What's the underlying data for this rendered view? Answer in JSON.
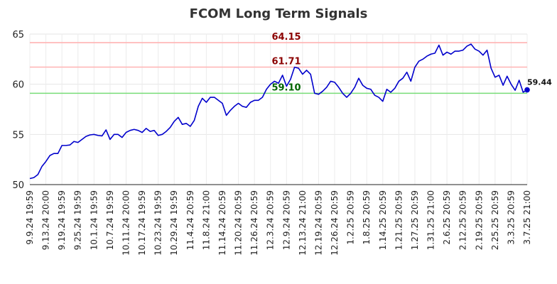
{
  "chart_data": {
    "type": "line",
    "title": "FCOM Long Term Signals",
    "xlabel": "",
    "ylabel": "",
    "ylim": [
      50,
      65
    ],
    "yticks": [
      50,
      55,
      60,
      65
    ],
    "grid": true,
    "x_tick_labels": [
      "9.9.24 19:59",
      "9.13.24 20:00",
      "9.19.24 19:59",
      "9.25.24 19:59",
      "10.1.24 19:59",
      "10.7.24 19:59",
      "10.11.24 20:00",
      "10.17.24 19:59",
      "10.23.24 19:59",
      "10.29.24 19:59",
      "11.4.24 20:59",
      "11.8.24 21:00",
      "11.14.24 20:59",
      "11.20.24 20:59",
      "11.26.24 20:59",
      "12.3.24 20:59",
      "12.9.24 20:59",
      "12.13.24 21:00",
      "12.19.24 20:59",
      "12.26.24 20:59",
      "1.2.25 20:59",
      "1.8.25 20:59",
      "1.14.25 20:59",
      "1.21.25 20:59",
      "1.27.25 20:59",
      "1.31.25 21:00",
      "2.6.25 20:59",
      "2.12.25 20:59",
      "2.19.25 20:59",
      "2.25.25 20:59",
      "3.3.25 20:59",
      "3.7.25 21:00"
    ],
    "series": [
      {
        "color": "#0000cc",
        "values": [
          50.6,
          50.7,
          51.0,
          51.8,
          52.3,
          52.9,
          53.1,
          53.1,
          53.9,
          53.9,
          53.95,
          54.3,
          54.2,
          54.5,
          54.8,
          54.95,
          55.0,
          54.9,
          54.85,
          55.45,
          54.5,
          55.0,
          55.0,
          54.7,
          55.2,
          55.4,
          55.5,
          55.4,
          55.2,
          55.6,
          55.3,
          55.4,
          54.9,
          55.0,
          55.3,
          55.7,
          56.3,
          56.7,
          56.0,
          56.1,
          55.8,
          56.4,
          57.8,
          58.6,
          58.2,
          58.7,
          58.7,
          58.4,
          58.1,
          56.9,
          57.4,
          57.8,
          58.1,
          57.8,
          57.7,
          58.2,
          58.4,
          58.4,
          58.7,
          59.5,
          60.0,
          60.3,
          60.1,
          60.9,
          59.8,
          60.5,
          61.7,
          61.6,
          61.0,
          61.4,
          61.0,
          59.1,
          59.0,
          59.3,
          59.7,
          60.3,
          60.2,
          59.7,
          59.1,
          58.7,
          59.1,
          59.7,
          60.6,
          59.9,
          59.6,
          59.5,
          58.9,
          58.7,
          58.3,
          59.5,
          59.2,
          59.6,
          60.3,
          60.6,
          61.2,
          60.3,
          61.7,
          62.3,
          62.5,
          62.8,
          63.0,
          63.1,
          63.9,
          62.9,
          63.2,
          63.0,
          63.3,
          63.3,
          63.4,
          63.8,
          64.0,
          63.5,
          63.3,
          62.9,
          63.4,
          61.6,
          60.7,
          60.9,
          59.9,
          60.8,
          60.0,
          59.4,
          60.4,
          59.2,
          59.44
        ]
      }
    ],
    "reference_lines": [
      {
        "value": 64.15,
        "label": "64.15",
        "line_color": "#ffb3b3",
        "text_color": "#8b0000"
      },
      {
        "value": 61.71,
        "label": "61.71",
        "line_color": "#ffb3b3",
        "text_color": "#8b0000"
      },
      {
        "value": 59.1,
        "label": "59.10",
        "line_color": "#77dd77",
        "text_color": "#006400"
      }
    ],
    "last_value_label": "59.44"
  }
}
